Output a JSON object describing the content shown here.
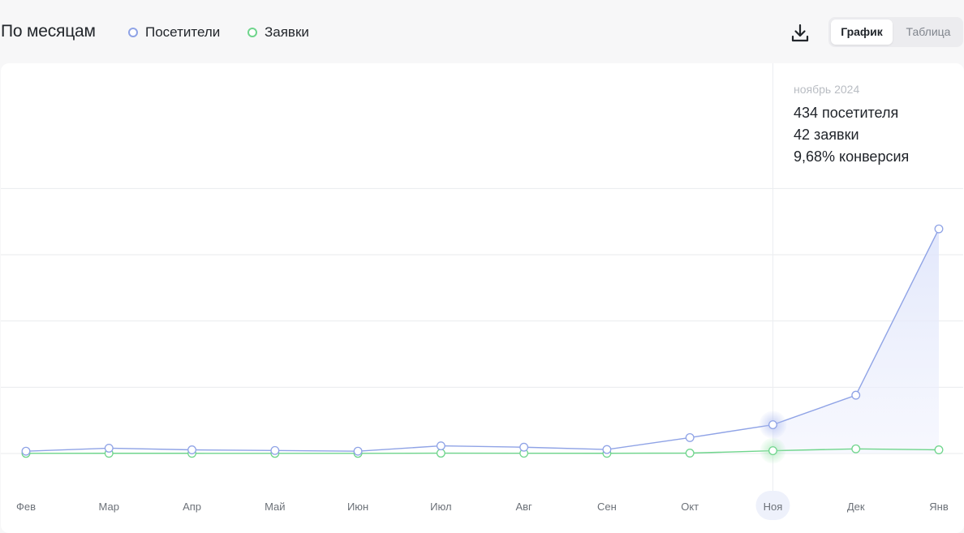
{
  "header": {
    "title": "По месяцам",
    "legend": [
      {
        "label": "Посетители",
        "color": "#8fa3e6"
      },
      {
        "label": "Заявки",
        "color": "#6fd58c"
      }
    ],
    "download_icon": "download-icon",
    "toggle": {
      "chart_label": "График",
      "table_label": "Таблица",
      "active": "График"
    }
  },
  "tooltip": {
    "month": "ноябрь 2024",
    "visitors": "434 посетителя",
    "requests": "42 заявки",
    "conversion": "9,68% конверсия"
  },
  "chart_data": {
    "type": "line",
    "categories": [
      "Фев",
      "Мар",
      "Апр",
      "Май",
      "Июн",
      "Июл",
      "Авг",
      "Сен",
      "Окт",
      "Ноя",
      "Дек",
      "Янв"
    ],
    "highlighted_category": "Ноя",
    "series": [
      {
        "name": "Посетители",
        "color": "#8fa3e6",
        "values": [
          35,
          80,
          55,
          45,
          35,
          115,
          95,
          60,
          240,
          434,
          880,
          3390
        ]
      },
      {
        "name": "Заявки",
        "color": "#6fd58c",
        "values": [
          2,
          3,
          3,
          2,
          2,
          5,
          4,
          3,
          6,
          42,
          70,
          55
        ]
      }
    ],
    "ylim": [
      0,
      5400
    ],
    "y_gridlines": [
      0,
      1000,
      2000,
      3000,
      4000
    ],
    "grid": true
  }
}
